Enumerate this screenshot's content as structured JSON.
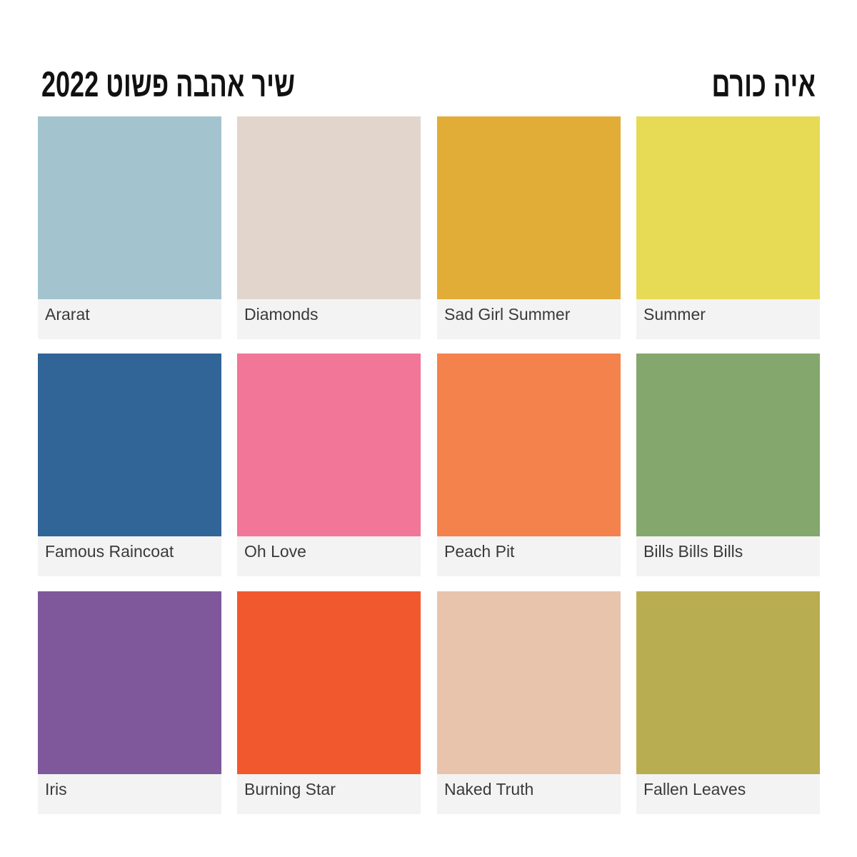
{
  "header": {
    "album_title": "שיר אהבה פשוט 2022",
    "artist": "איה כורם"
  },
  "swatches": [
    {
      "name": "Ararat",
      "color": "#a3c4cf"
    },
    {
      "name": "Diamonds",
      "color": "#e2d5cc"
    },
    {
      "name": "Sad Girl Summer",
      "color": "#e2ad36"
    },
    {
      "name": "Summer",
      "color": "#e7da55"
    },
    {
      "name": "Famous Raincoat",
      "color": "#316497"
    },
    {
      "name": "Oh Love",
      "color": "#f17697"
    },
    {
      "name": "Peach Pit",
      "color": "#f4824c"
    },
    {
      "name": "Bills Bills Bills",
      "color": "#84a76d"
    },
    {
      "name": "Iris",
      "color": "#7f589b"
    },
    {
      "name": "Burning Star",
      "color": "#f1582e"
    },
    {
      "name": "Naked Truth",
      "color": "#e8c4ac"
    },
    {
      "name": "Fallen Leaves",
      "color": "#b9ad51"
    }
  ]
}
